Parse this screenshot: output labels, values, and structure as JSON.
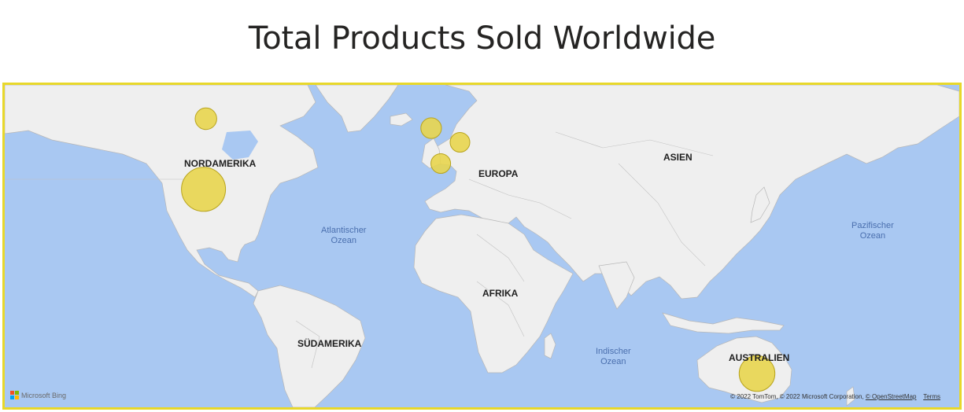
{
  "title": "Total Products Sold Worldwide",
  "map": {
    "continents": {
      "north_america": "NORDAMERIKA",
      "europe": "EUROPA",
      "asia": "ASIEN",
      "africa": "AFRIKA",
      "south_america": "SÜDAMERIKA",
      "australia": "AUSTRALIEN"
    },
    "oceans": {
      "atlantic_line1": "Atlantischer",
      "atlantic_line2": "Ozean",
      "pacific_line1": "Pazifischer",
      "pacific_line2": "Ozean",
      "indian_line1": "Indischer",
      "indian_line2": "Ozean"
    },
    "bubbles": [
      {
        "location": "Canada",
        "lon": -96,
        "lat": 56,
        "relative_size": 0.24
      },
      {
        "location": "United States",
        "lon": -97,
        "lat": 38,
        "relative_size": 1.0
      },
      {
        "location": "United Kingdom",
        "lon": -2,
        "lat": 54,
        "relative_size": 0.22
      },
      {
        "location": "Germany",
        "lon": 10,
        "lat": 51,
        "relative_size": 0.2
      },
      {
        "location": "France",
        "lon": 2,
        "lat": 46.5,
        "relative_size": 0.2
      },
      {
        "location": "Australia",
        "lon": 134,
        "lat": -25,
        "relative_size": 0.66
      }
    ],
    "bubble_color": "#e8d54a",
    "border_color": "#e8d82a",
    "water_color": "#a9c8f2",
    "land_color": "#efefef"
  },
  "footer": {
    "brand": "Microsoft Bing",
    "attribution": "© 2022 TomTom, © 2022 Microsoft Corporation,",
    "osm_link": "© OpenStreetMap",
    "terms": "Terms"
  }
}
